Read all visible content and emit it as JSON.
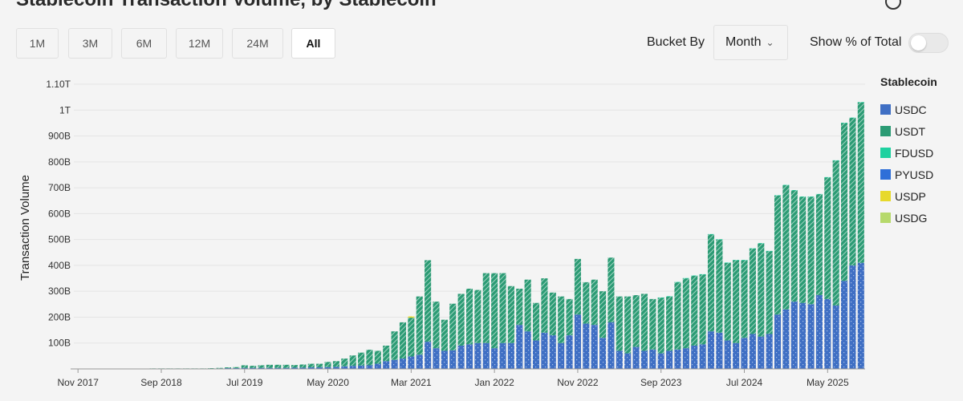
{
  "header": {
    "title": "Stablecoin Transaction Volume, by Stablecoin"
  },
  "range_buttons": [
    {
      "label": "1M",
      "active": false
    },
    {
      "label": "3M",
      "active": false
    },
    {
      "label": "6M",
      "active": false
    },
    {
      "label": "12M",
      "active": false
    },
    {
      "label": "24M",
      "active": false
    },
    {
      "label": "All",
      "active": true
    }
  ],
  "controls": {
    "bucket_label": "Bucket By",
    "bucket_value": "Month",
    "pct_label": "Show % of Total",
    "pct_enabled": false
  },
  "legend": {
    "title": "Stablecoin",
    "items": [
      {
        "label": "USDC",
        "color": "#3f6fc4"
      },
      {
        "label": "USDT",
        "color": "#2b9b74"
      },
      {
        "label": "FDUSD",
        "color": "#1fd1a0"
      },
      {
        "label": "PYUSD",
        "color": "#2f6fd8"
      },
      {
        "label": "USDP",
        "color": "#e7d92b"
      },
      {
        "label": "USDG",
        "color": "#b6d96b"
      }
    ]
  },
  "chart_data": {
    "type": "bar",
    "stacked": true,
    "ylabel": "Transaction Volume",
    "ylim": [
      0,
      1.1
    ],
    "y_unit": "trillions",
    "y_ticks": [
      {
        "v": 0.1,
        "label": "100B"
      },
      {
        "v": 0.2,
        "label": "200B"
      },
      {
        "v": 0.3,
        "label": "300B"
      },
      {
        "v": 0.4,
        "label": "400B"
      },
      {
        "v": 0.5,
        "label": "500B"
      },
      {
        "v": 0.6,
        "label": "600B"
      },
      {
        "v": 0.7,
        "label": "700B"
      },
      {
        "v": 0.8,
        "label": "800B"
      },
      {
        "v": 0.9,
        "label": "900B"
      },
      {
        "v": 1.0,
        "label": "1T"
      },
      {
        "v": 1.1,
        "label": "1.10T"
      }
    ],
    "x_ticks": [
      {
        "index": 0,
        "label": "Nov 2017"
      },
      {
        "index": 10,
        "label": "Sep 2018"
      },
      {
        "index": 20,
        "label": "Jul 2019"
      },
      {
        "index": 30,
        "label": "May 2020"
      },
      {
        "index": 40,
        "label": "Mar 2021"
      },
      {
        "index": 50,
        "label": "Jan 2022"
      },
      {
        "index": 60,
        "label": "Nov 2022"
      },
      {
        "index": 70,
        "label": "Sep 2023"
      },
      {
        "index": 80,
        "label": "Jul 2024"
      },
      {
        "index": 90,
        "label": "May 2025"
      }
    ],
    "categories": [
      "Nov 2017",
      "Dec 2017",
      "Jan 2018",
      "Feb 2018",
      "Mar 2018",
      "Apr 2018",
      "May 2018",
      "Jun 2018",
      "Jul 2018",
      "Aug 2018",
      "Sep 2018",
      "Oct 2018",
      "Nov 2018",
      "Dec 2018",
      "Jan 2019",
      "Feb 2019",
      "Mar 2019",
      "Apr 2019",
      "May 2019",
      "Jun 2019",
      "Jul 2019",
      "Aug 2019",
      "Sep 2019",
      "Oct 2019",
      "Nov 2019",
      "Dec 2019",
      "Jan 2020",
      "Feb 2020",
      "Mar 2020",
      "Apr 2020",
      "May 2020",
      "Jun 2020",
      "Jul 2020",
      "Aug 2020",
      "Sep 2020",
      "Oct 2020",
      "Nov 2020",
      "Dec 2020",
      "Jan 2021",
      "Feb 2021",
      "Mar 2021",
      "Apr 2021",
      "May 2021",
      "Jun 2021",
      "Jul 2021",
      "Aug 2021",
      "Sep 2021",
      "Oct 2021",
      "Nov 2021",
      "Dec 2021",
      "Jan 2022",
      "Feb 2022",
      "Mar 2022",
      "Apr 2022",
      "May 2022",
      "Jun 2022",
      "Jul 2022",
      "Aug 2022",
      "Sep 2022",
      "Oct 2022",
      "Nov 2022",
      "Dec 2022",
      "Jan 2023",
      "Feb 2023",
      "Mar 2023",
      "Apr 2023",
      "May 2023",
      "Jun 2023",
      "Jul 2023",
      "Aug 2023",
      "Sep 2023",
      "Oct 2023",
      "Nov 2023",
      "Dec 2023",
      "Jan 2024",
      "Feb 2024",
      "Mar 2024",
      "Apr 2024",
      "May 2024",
      "Jun 2024",
      "Jul 2024",
      "Aug 2024",
      "Sep 2024",
      "Oct 2024",
      "Nov 2024",
      "Dec 2024",
      "Jan 2025",
      "Feb 2025",
      "Mar 2025",
      "Apr 2025",
      "May 2025",
      "Jun 2025",
      "Jul 2025",
      "Aug 2025",
      "Sep 2025"
    ],
    "series": [
      {
        "name": "USDC",
        "values": [
          0,
          0,
          0,
          0,
          0,
          0,
          0,
          0,
          0,
          0.001,
          0.001,
          0.001,
          0.001,
          0.001,
          0.001,
          0.001,
          0.001,
          0.002,
          0.003,
          0.003,
          0.004,
          0.004,
          0.004,
          0.004,
          0.004,
          0.004,
          0.005,
          0.005,
          0.006,
          0.006,
          0.007,
          0.008,
          0.01,
          0.012,
          0.013,
          0.014,
          0.02,
          0.03,
          0.035,
          0.04,
          0.048,
          0.055,
          0.105,
          0.08,
          0.07,
          0.072,
          0.09,
          0.095,
          0.1,
          0.1,
          0.08,
          0.1,
          0.1,
          0.17,
          0.145,
          0.11,
          0.14,
          0.13,
          0.1,
          0.13,
          0.21,
          0.175,
          0.17,
          0.12,
          0.18,
          0.07,
          0.06,
          0.085,
          0.07,
          0.075,
          0.06,
          0.07,
          0.075,
          0.08,
          0.09,
          0.095,
          0.145,
          0.14,
          0.11,
          0.1,
          0.12,
          0.135,
          0.125,
          0.135,
          0.21,
          0.23,
          0.26,
          0.255,
          0.25,
          0.285,
          0.27,
          0.245,
          0.34,
          0.4,
          0.41
        ]
      },
      {
        "name": "USDT",
        "values": [
          0.001,
          0.001,
          0.001,
          0.001,
          0.001,
          0.001,
          0.001,
          0.001,
          0.001,
          0.001,
          0.001,
          0.001,
          0.001,
          0.001,
          0.001,
          0.001,
          0.002,
          0.002,
          0.003,
          0.004,
          0.01,
          0.008,
          0.01,
          0.012,
          0.012,
          0.012,
          0.01,
          0.012,
          0.014,
          0.014,
          0.02,
          0.022,
          0.03,
          0.04,
          0.05,
          0.06,
          0.05,
          0.06,
          0.11,
          0.14,
          0.15,
          0.225,
          0.315,
          0.18,
          0.12,
          0.18,
          0.2,
          0.215,
          0.205,
          0.27,
          0.29,
          0.27,
          0.22,
          0.14,
          0.2,
          0.145,
          0.21,
          0.165,
          0.18,
          0.14,
          0.215,
          0.16,
          0.175,
          0.18,
          0.25,
          0.21,
          0.22,
          0.2,
          0.22,
          0.195,
          0.215,
          0.21,
          0.26,
          0.27,
          0.27,
          0.27,
          0.375,
          0.36,
          0.3,
          0.32,
          0.3,
          0.33,
          0.36,
          0.32,
          0.46,
          0.48,
          0.43,
          0.41,
          0.415,
          0.39,
          0.47,
          0.56,
          0.61,
          0.57,
          0.62
        ]
      },
      {
        "name": "FDUSD",
        "values": [
          0,
          0,
          0,
          0,
          0,
          0,
          0,
          0,
          0,
          0,
          0,
          0,
          0,
          0,
          0,
          0,
          0,
          0,
          0,
          0,
          0,
          0,
          0,
          0,
          0,
          0,
          0,
          0,
          0,
          0,
          0,
          0,
          0,
          0,
          0,
          0,
          0,
          0,
          0,
          0,
          0,
          0,
          0,
          0,
          0,
          0,
          0,
          0,
          0,
          0,
          0,
          0,
          0,
          0,
          0,
          0,
          0,
          0,
          0,
          0,
          0,
          0,
          0,
          0,
          0,
          0,
          0,
          0,
          0,
          0,
          0.001,
          0.001,
          0.001,
          0.001,
          0.001,
          0.001,
          0.001,
          0.001,
          0.001,
          0.001,
          0.001,
          0.001,
          0.001,
          0.001,
          0.001,
          0.001,
          0.001,
          0.001,
          0.001,
          0.001,
          0.001,
          0.001,
          0.001,
          0.001,
          0.001
        ]
      },
      {
        "name": "PYUSD",
        "values": [
          0,
          0,
          0,
          0,
          0,
          0,
          0,
          0,
          0,
          0,
          0,
          0,
          0,
          0,
          0,
          0,
          0,
          0,
          0,
          0,
          0,
          0,
          0,
          0,
          0,
          0,
          0,
          0,
          0,
          0,
          0,
          0,
          0,
          0,
          0,
          0,
          0,
          0,
          0,
          0,
          0,
          0,
          0,
          0,
          0,
          0,
          0,
          0,
          0,
          0,
          0,
          0,
          0,
          0,
          0,
          0,
          0,
          0,
          0,
          0,
          0,
          0,
          0,
          0,
          0,
          0,
          0,
          0,
          0,
          0,
          0,
          0,
          0,
          0,
          0,
          0,
          0,
          0,
          0,
          0,
          0,
          0,
          0,
          0,
          0,
          0,
          0,
          0,
          0,
          0,
          0,
          0,
          0,
          0,
          0
        ]
      },
      {
        "name": "USDP",
        "values": [
          0,
          0,
          0,
          0,
          0,
          0,
          0,
          0,
          0,
          0,
          0,
          0,
          0,
          0,
          0,
          0,
          0,
          0,
          0,
          0,
          0,
          0,
          0,
          0,
          0,
          0,
          0,
          0,
          0,
          0,
          0,
          0,
          0,
          0,
          0,
          0,
          0,
          0,
          0,
          0,
          0.005,
          0,
          0,
          0,
          0,
          0,
          0,
          0,
          0,
          0,
          0,
          0,
          0,
          0,
          0,
          0,
          0,
          0,
          0,
          0,
          0,
          0,
          0,
          0,
          0,
          0,
          0,
          0,
          0,
          0,
          0,
          0,
          0,
          0,
          0,
          0,
          0,
          0,
          0,
          0,
          0,
          0,
          0,
          0,
          0,
          0,
          0,
          0,
          0,
          0,
          0,
          0,
          0,
          0,
          0
        ]
      },
      {
        "name": "USDG",
        "values": [
          0,
          0,
          0,
          0,
          0,
          0,
          0,
          0,
          0,
          0,
          0,
          0,
          0,
          0,
          0,
          0,
          0,
          0,
          0,
          0,
          0,
          0,
          0,
          0,
          0,
          0,
          0,
          0,
          0,
          0,
          0,
          0,
          0,
          0,
          0,
          0,
          0,
          0,
          0,
          0,
          0,
          0,
          0,
          0,
          0,
          0,
          0,
          0,
          0,
          0,
          0,
          0,
          0,
          0,
          0,
          0,
          0,
          0,
          0,
          0,
          0,
          0,
          0,
          0,
          0,
          0,
          0,
          0,
          0,
          0,
          0,
          0,
          0,
          0,
          0,
          0,
          0,
          0,
          0,
          0,
          0,
          0,
          0,
          0,
          0,
          0,
          0,
          0,
          0,
          0,
          0,
          0,
          0,
          0,
          0
        ]
      }
    ],
    "grid": true,
    "legend_position": "right"
  }
}
